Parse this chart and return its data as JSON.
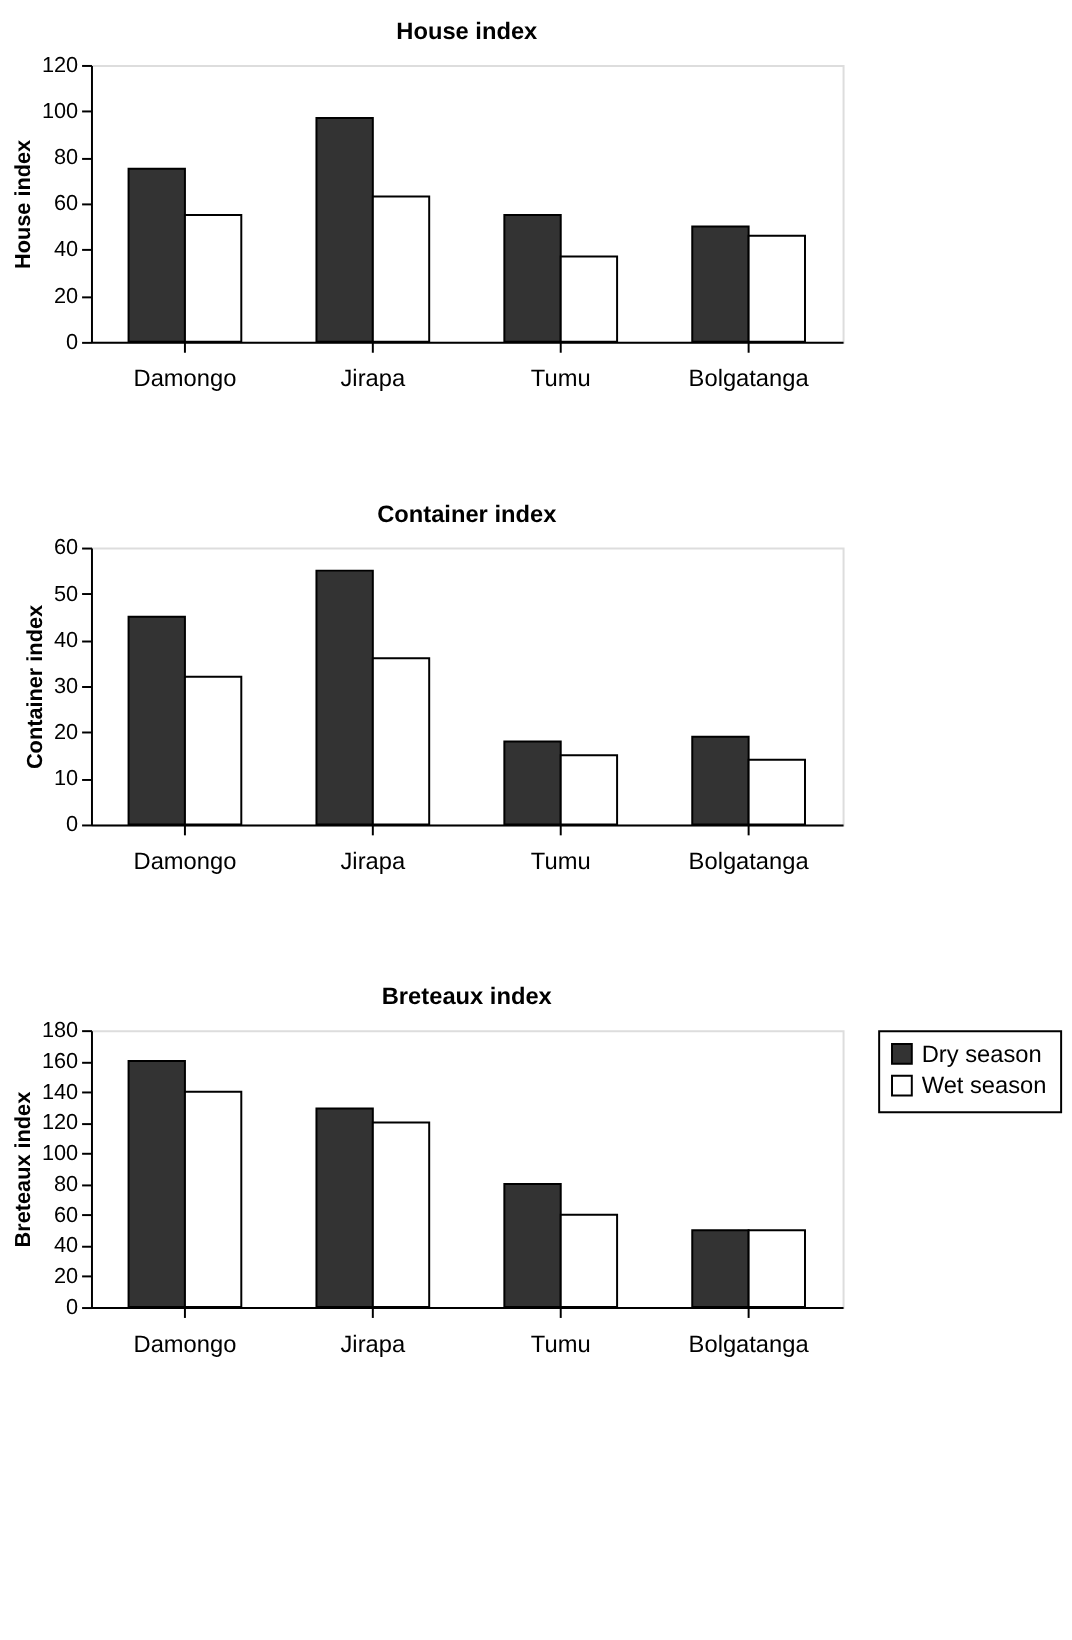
{
  "chart_data": [
    {
      "type": "bar",
      "title": "House index",
      "ylabel": "House index",
      "categories": [
        "Damongo",
        "Jirapa",
        "Tumu",
        "Bolgatanga"
      ],
      "series": [
        {
          "color": "#333333",
          "values": [
            75,
            97,
            55,
            50
          ]
        },
        {
          "color": "#ffffff",
          "values": [
            55,
            63,
            37,
            46
          ]
        }
      ],
      "ylim": [
        0,
        120
      ],
      "yticks": [
        0,
        20,
        40,
        60,
        80,
        100,
        120
      ],
      "grid": false,
      "legend": false
    },
    {
      "type": "bar",
      "title": "Container index",
      "ylabel": "Container index",
      "categories": [
        "Damongo",
        "Jirapa",
        "Tumu",
        "Bolgatanga"
      ],
      "series": [
        {
          "color": "#333333",
          "values": [
            45,
            55,
            18,
            19
          ]
        },
        {
          "color": "#ffffff",
          "values": [
            32,
            36,
            15,
            14
          ]
        }
      ],
      "ylim": [
        0,
        60
      ],
      "yticks": [
        0,
        10,
        20,
        30,
        40,
        50,
        60
      ],
      "grid": false,
      "legend": false
    },
    {
      "type": "bar",
      "title": "Breteaux index",
      "ylabel": "Breteaux index",
      "categories": [
        "Damongo",
        "Jirapa",
        "Tumu",
        "Bolgatanga"
      ],
      "series": [
        {
          "name": "Dry season",
          "color": "#333333",
          "values": [
            160,
            129,
            80,
            50
          ]
        },
        {
          "name": "Wet season",
          "color": "#ffffff",
          "values": [
            140,
            120,
            60,
            50
          ]
        }
      ],
      "ylim": [
        0,
        180
      ],
      "yticks": [
        0,
        20,
        40,
        60,
        80,
        100,
        120,
        140,
        160,
        180
      ],
      "grid": false,
      "legend": "right"
    }
  ]
}
